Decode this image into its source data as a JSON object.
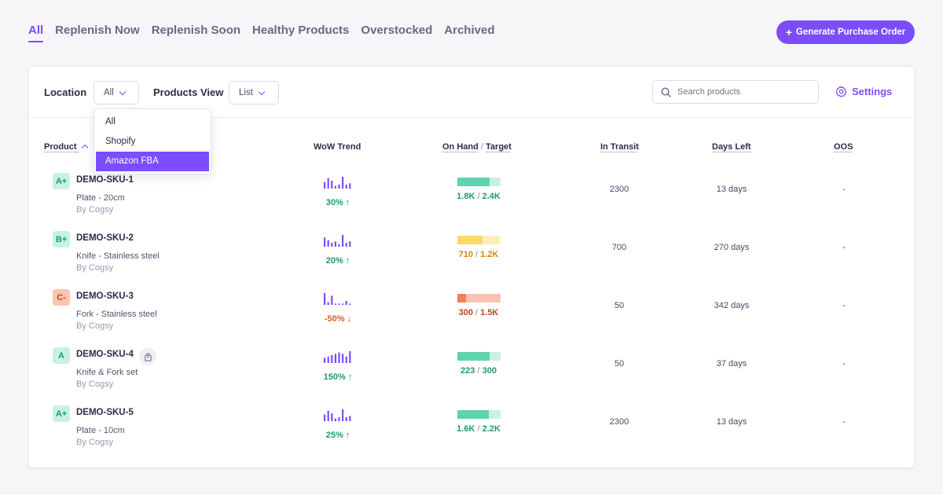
{
  "tabs": [
    {
      "label": "All"
    },
    {
      "label": "Replenish Now"
    },
    {
      "label": "Replenish Soon"
    },
    {
      "label": "Healthy Products"
    },
    {
      "label": "Overstocked"
    },
    {
      "label": "Archived"
    }
  ],
  "generate_button": "Generate Purchase Order",
  "toolbar": {
    "location_label": "Location",
    "location_value": "All",
    "products_view_label": "Products View",
    "products_view_value": "List",
    "search_placeholder": "Search products",
    "settings_label": "Settings"
  },
  "location_options": [
    "All",
    "Shopify",
    "Amazon FBA"
  ],
  "location_highlighted": "Amazon FBA",
  "columns": {
    "product": "Product",
    "wow_trend": "WoW Trend",
    "on_hand": "On Hand",
    "target": "Target",
    "in_transit": "In Transit",
    "days_left": "Days Left",
    "oos": "OOS"
  },
  "colors": {
    "accent": "#7c4dff",
    "up": "#1f9a6a",
    "down": "#e05a2b",
    "green_bar": "#5dd3b0",
    "green_track": "#c9f0e3",
    "yellow_bar": "#fcd96b",
    "yellow_track": "#fdeeba",
    "red_bar": "#f0805a",
    "red_track": "#f9c3b3"
  },
  "rows": [
    {
      "grade": "A+",
      "grade_style": "green",
      "sku": "DEMO-SKU-1",
      "name": "Plate - 20cm",
      "vendor": "By Cogsy",
      "trend": "30% ↑",
      "trend_dir": "up",
      "spark": [
        5,
        8,
        6,
        2,
        3,
        9,
        3,
        4
      ],
      "on_hand": "1.8K",
      "target": "2.4K",
      "fill": 0.75,
      "bar_style": "green",
      "in_transit": "2300",
      "days_left": "13 days",
      "oos": "-"
    },
    {
      "grade": "B+",
      "grade_style": "green",
      "sku": "DEMO-SKU-2",
      "name": "Knife - Stainless steel",
      "vendor": "By Cogsy",
      "trend": "20% ↑",
      "trend_dir": "up",
      "spark": [
        7,
        5,
        3,
        4,
        2,
        9,
        3,
        4
      ],
      "on_hand": "710",
      "target": "1.2K",
      "fill": 0.59,
      "bar_style": "yellow",
      "in_transit": "700",
      "days_left": "270 days",
      "oos": "-"
    },
    {
      "grade": "C-",
      "grade_style": "red",
      "sku": "DEMO-SKU-3",
      "name": "Fork - Stainless steel",
      "vendor": "By Cogsy",
      "trend": "-50% ↓",
      "trend_dir": "down",
      "spark": [
        9,
        2,
        7,
        1,
        1,
        1,
        3,
        1
      ],
      "on_hand": "300",
      "target": "1.5K",
      "fill": 0.2,
      "bar_style": "red",
      "in_transit": "50",
      "days_left": "342 days",
      "oos": "-"
    },
    {
      "grade": "A",
      "grade_style": "green",
      "sku": "DEMO-SKU-4",
      "name": "Knife & Fork set",
      "vendor": "By Cogsy",
      "trend": "150% ↑",
      "trend_dir": "up",
      "spark": [
        4,
        5,
        6,
        7,
        8,
        7,
        5,
        9
      ],
      "on_hand": "223",
      "target": "300",
      "fill": 0.74,
      "bar_style": "green",
      "in_transit": "50",
      "days_left": "37 days",
      "oos": "-",
      "has_bag_icon": true
    },
    {
      "grade": "A+",
      "grade_style": "green",
      "sku": "DEMO-SKU-5",
      "name": "Plate - 10cm",
      "vendor": "By Cogsy",
      "trend": "25% ↑",
      "trend_dir": "up",
      "spark": [
        5,
        8,
        6,
        2,
        3,
        9,
        3,
        4
      ],
      "on_hand": "1.6K",
      "target": "2.2K",
      "fill": 0.73,
      "bar_style": "green",
      "in_transit": "2300",
      "days_left": "13 days",
      "oos": "-"
    }
  ]
}
